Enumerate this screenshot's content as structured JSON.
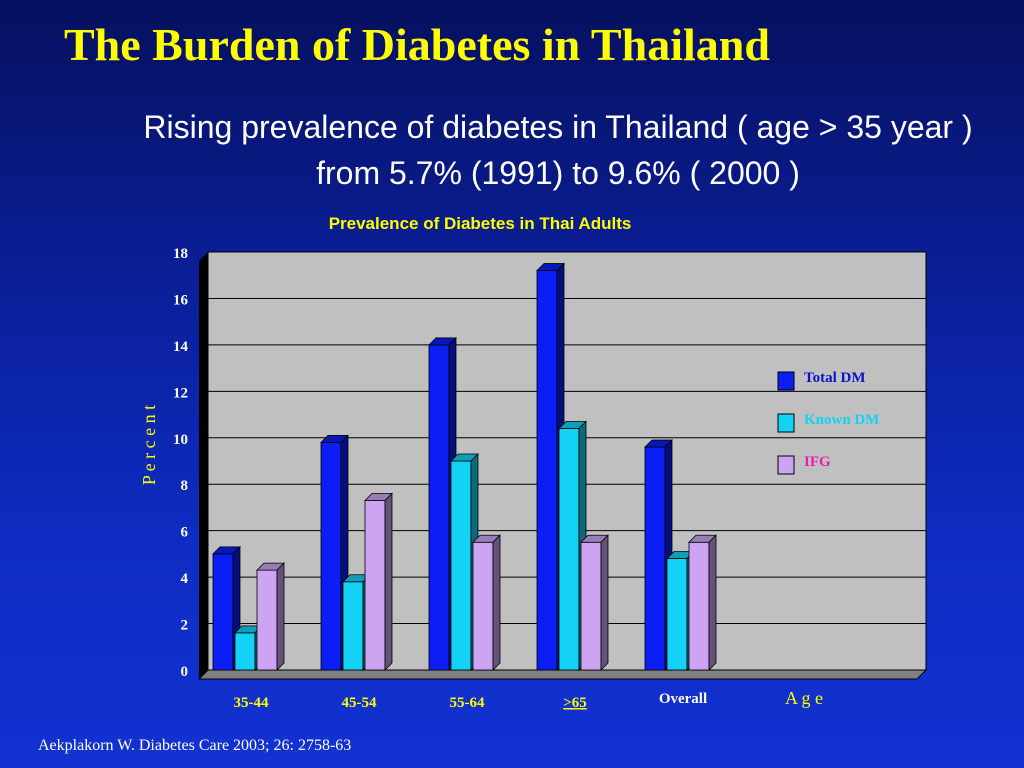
{
  "slide": {
    "title": "The Burden of Diabetes in Thailand",
    "subtitle": "Rising prevalence of diabetes in Thailand ( age > 35 year ) from 5.7% (1991) to 9.6% ( 2000 )",
    "citation": "Aekplakorn W. Diabetes Care 2003; 26: 2758-63"
  },
  "chart_data": {
    "type": "bar",
    "title": "Prevalence of Diabetes in Thai Adults",
    "xlabel": "A g e",
    "ylabel": "P e r c e n t",
    "categories": [
      "35-44",
      "45-54",
      "55-64",
      ">65",
      "Overall"
    ],
    "series": [
      {
        "name": "Total DM",
        "color": "#0a1ef5",
        "values": [
          5.0,
          9.8,
          14.0,
          17.2,
          9.6
        ]
      },
      {
        "name": "Known DM",
        "color": "#14d2f5",
        "values": [
          1.6,
          3.8,
          9.0,
          10.4,
          4.8
        ]
      },
      {
        "name": "IFG",
        "color": "#cca4f2",
        "values": [
          4.3,
          7.3,
          5.5,
          5.5,
          5.5
        ]
      }
    ],
    "ylim": [
      0,
      18
    ],
    "yticks": [
      0,
      2,
      4,
      6,
      8,
      10,
      12,
      14,
      16,
      18
    ],
    "grid": true,
    "legend": "right",
    "legend_text_colors": [
      "#0a14c8",
      "#14d2f5",
      "#e61eb4"
    ],
    "plot_background": "#c0c0c0"
  }
}
